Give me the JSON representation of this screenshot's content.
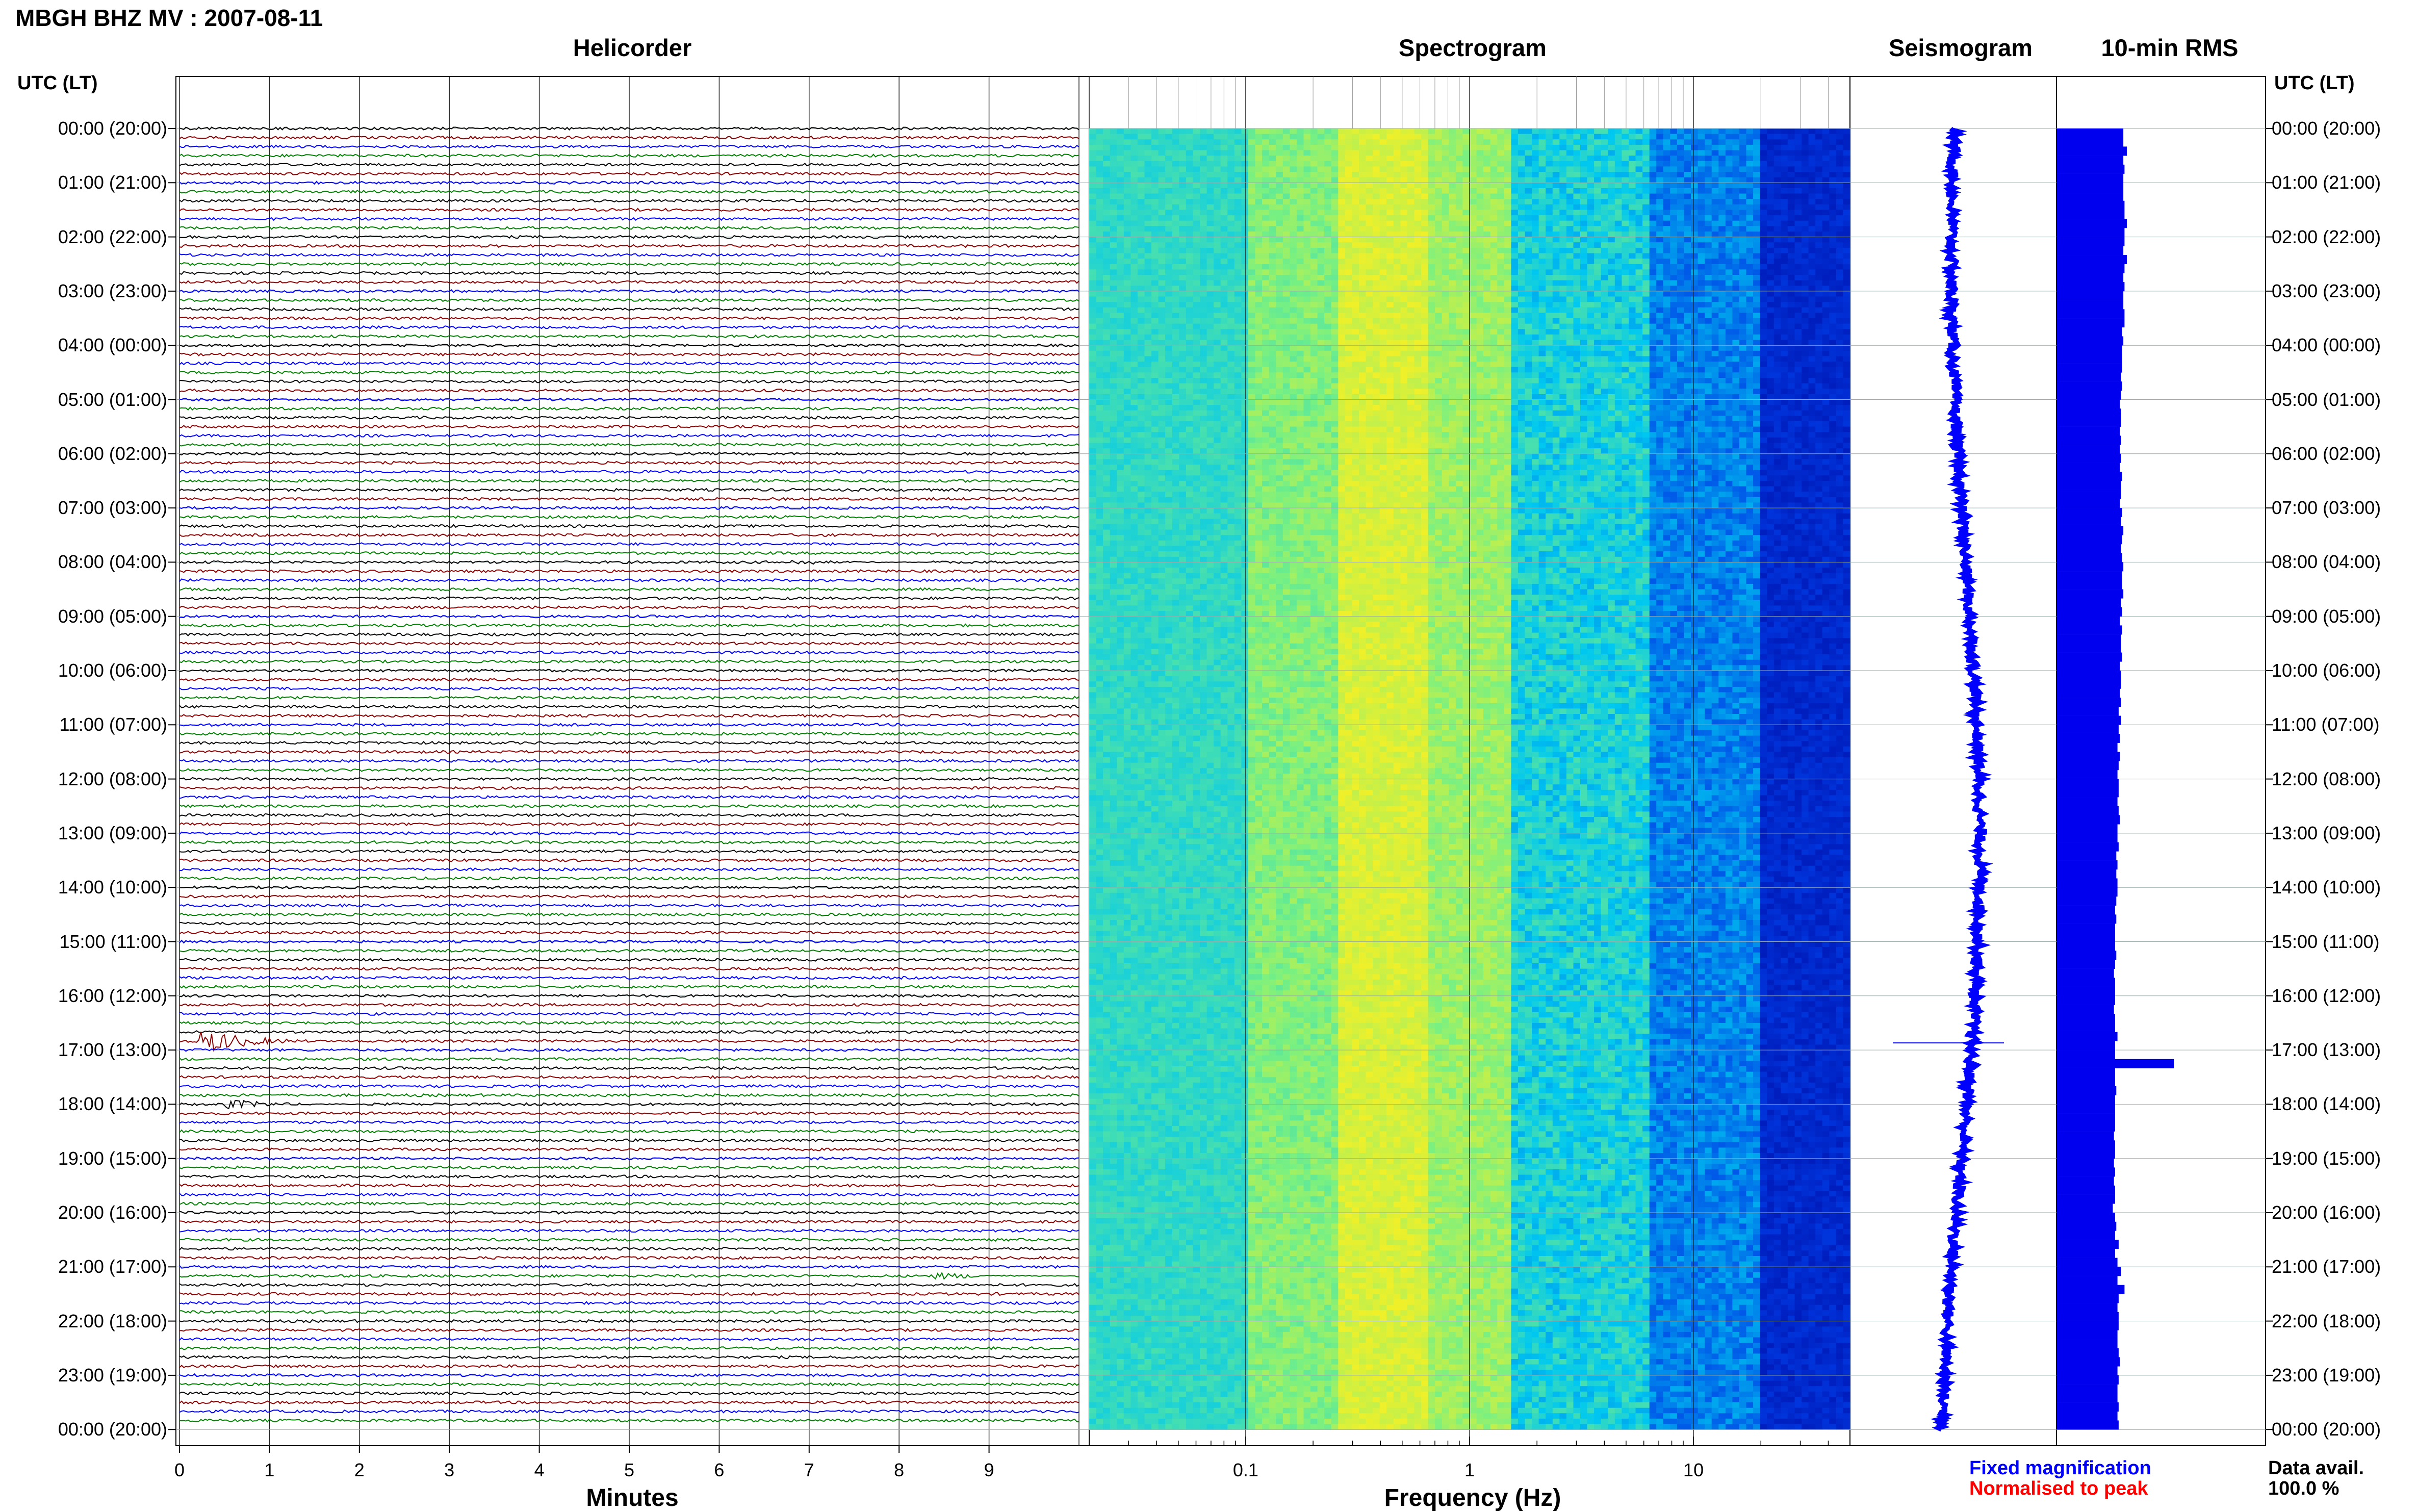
{
  "header": {
    "title": "MBGH BHZ MV : 2007-08-11"
  },
  "panels": {
    "helicorder": "Helicorder",
    "spectrogram": "Spectrogram",
    "seismogram": "Seismogram",
    "rms": "10-min RMS"
  },
  "axes": {
    "utc_left": "UTC (LT)",
    "utc_right": "UTC (LT)",
    "minutes_label": "Minutes",
    "frequency_label": "Frequency (Hz)"
  },
  "hours": [
    "00:00 (20:00)",
    "01:00 (21:00)",
    "02:00 (22:00)",
    "03:00 (23:00)",
    "04:00 (00:00)",
    "05:00 (01:00)",
    "06:00 (02:00)",
    "07:00 (03:00)",
    "08:00 (04:00)",
    "09:00 (05:00)",
    "10:00 (06:00)",
    "11:00 (07:00)",
    "12:00 (08:00)",
    "13:00 (09:00)",
    "14:00 (10:00)",
    "15:00 (11:00)",
    "16:00 (12:00)",
    "17:00 (13:00)",
    "18:00 (14:00)",
    "19:00 (15:00)",
    "20:00 (16:00)",
    "21:00 (17:00)",
    "22:00 (18:00)",
    "23:00 (19:00)",
    "00:00 (20:00)"
  ],
  "minute_ticks": [
    "0",
    "1",
    "2",
    "3",
    "4",
    "5",
    "6",
    "7",
    "8",
    "9"
  ],
  "freq_ticks": [
    "0.1",
    "1",
    "10"
  ],
  "footer": {
    "fixed": "Fixed magnification",
    "normalised": "Normalised to peak",
    "avail_label": "Data avail.",
    "avail_value": "100.0 %"
  },
  "colors": {
    "trace_cycle": [
      "#000000",
      "#8b0000",
      "#0000ff",
      "#008000"
    ],
    "fixed": "#0000ff",
    "normalised": "#ff0000",
    "rms": "#0000ee",
    "seismogram": "#0000ff"
  },
  "chart_data": [
    {
      "type": "line",
      "title": "Helicorder",
      "xlabel": "Minutes",
      "xlim": [
        0,
        10
      ],
      "rows_per_hour": 6,
      "hours": 24,
      "events": [
        {
          "hour": 8,
          "row": 0,
          "minute": 6.9,
          "amplitude": 2.0
        },
        {
          "hour": 10,
          "row": 3,
          "minute": 1.3,
          "amplitude": 1.5
        },
        {
          "hour": 16,
          "row": 5,
          "minute": 0.35,
          "amplitude": 8.0
        },
        {
          "hour": 18,
          "row": 0,
          "minute": 0.6,
          "amplitude": 3.5
        },
        {
          "hour": 21,
          "row": 1,
          "minute": 8.5,
          "amplitude": 2.5
        }
      ]
    },
    {
      "type": "heatmap",
      "title": "Spectrogram",
      "xlabel": "Frequency (Hz)",
      "x_scale": "log",
      "xlim": [
        0.02,
        50
      ],
      "rows": 24
    },
    {
      "type": "line",
      "title": "Seismogram",
      "rows": 24
    },
    {
      "type": "bar",
      "title": "10-min RMS",
      "rows": 144,
      "values": [
        0.57,
        0.57,
        0.6,
        0.57,
        0.58,
        0.57,
        0.57,
        0.57,
        0.58,
        0.58,
        0.6,
        0.58,
        0.58,
        0.57,
        0.6,
        0.58,
        0.57,
        0.58,
        0.57,
        0.57,
        0.58,
        0.58,
        0.56,
        0.57,
        0.56,
        0.56,
        0.56,
        0.55,
        0.56,
        0.55,
        0.54,
        0.55,
        0.55,
        0.54,
        0.55,
        0.54,
        0.55,
        0.54,
        0.56,
        0.55,
        0.55,
        0.54,
        0.56,
        0.55,
        0.57,
        0.56,
        0.55,
        0.56,
        0.57,
        0.56,
        0.56,
        0.57,
        0.55,
        0.56,
        0.54,
        0.56,
        0.55,
        0.55,
        0.56,
        0.54,
        0.55,
        0.55,
        0.54,
        0.55,
        0.53,
        0.55,
        0.53,
        0.54,
        0.52,
        0.54,
        0.53,
        0.52,
        0.53,
        0.53,
        0.52,
        0.53,
        0.54,
        0.52,
        0.52,
        0.53,
        0.51,
        0.52,
        0.51,
        0.52,
        0.52,
        0.51,
        0.5,
        0.51,
        0.5,
        0.5,
        0.5,
        0.51,
        0.5,
        0.49,
        0.5,
        0.5,
        0.5,
        0.49,
        0.5,
        0.5,
        0.52,
        0.5,
        0.5,
        1.0,
        0.5,
        0.5,
        0.51,
        0.5,
        0.5,
        0.5,
        0.5,
        0.49,
        0.5,
        0.5,
        0.49,
        0.5,
        0.49,
        0.5,
        0.5,
        0.48,
        0.5,
        0.51,
        0.5,
        0.53,
        0.5,
        0.52,
        0.55,
        0.52,
        0.58,
        0.53,
        0.52,
        0.53,
        0.53,
        0.52,
        0.52,
        0.53,
        0.54,
        0.52,
        0.53,
        0.52,
        0.52,
        0.53,
        0.52,
        0.53
      ]
    }
  ]
}
